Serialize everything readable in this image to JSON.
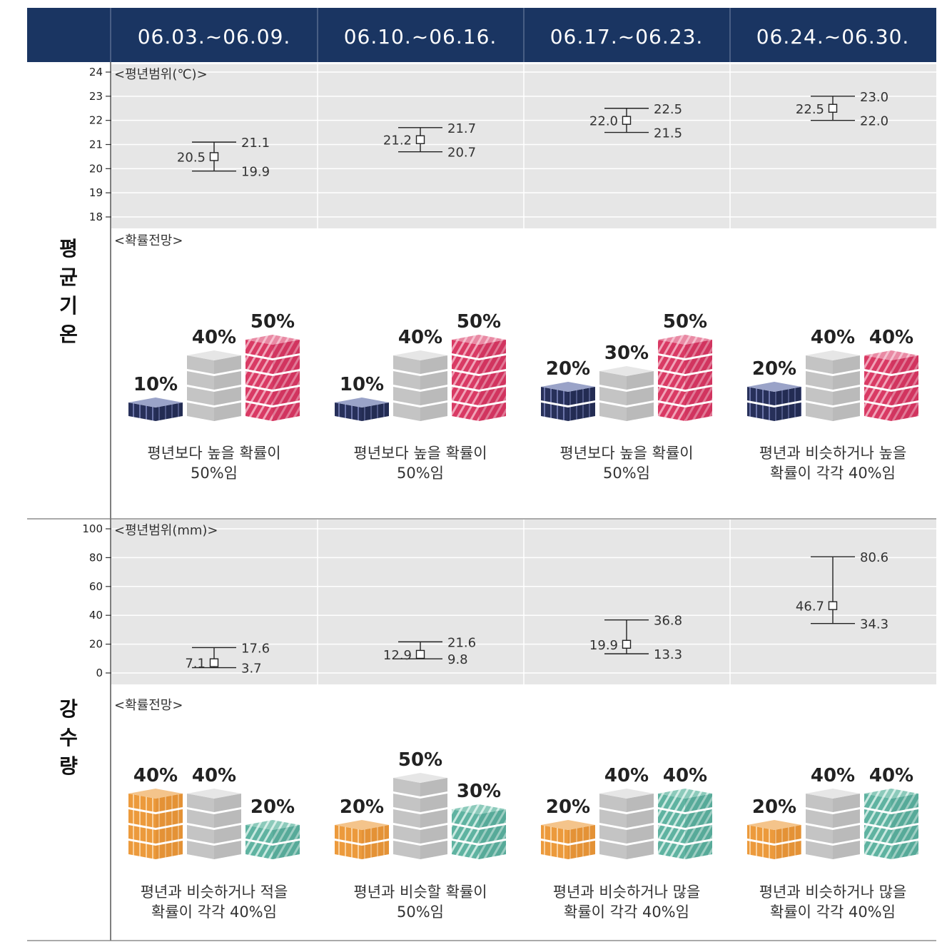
{
  "colors": {
    "header_bg": "#1a3562",
    "panel_bg": "#e6e6e6",
    "below": "#27305a",
    "near": "#c4c4c4",
    "above": "#d93a64",
    "dry": "#ec9a3c",
    "wet": "#5fb3a1"
  },
  "periods": [
    "06.03.~06.09.",
    "06.10.~06.16.",
    "06.17.~06.23.",
    "06.24.~06.30."
  ],
  "temperature": {
    "section_label": "평균기온",
    "range_label": "<평년범위(℃)>",
    "prob_label": "<확률전망>"
  },
  "precipitation": {
    "section_label": "강수량",
    "range_label": "<평년범위(mm)>",
    "prob_label": "<확률전망>"
  },
  "chart_data": [
    {
      "type": "errorbar",
      "panel": "평균기온 평년범위",
      "y_unit": "℃",
      "ylim": [
        18,
        24
      ],
      "y_ticks": [
        18,
        19,
        20,
        21,
        22,
        23,
        24
      ],
      "categories": [
        "06.03.~06.09.",
        "06.10.~06.16.",
        "06.17.~06.23.",
        "06.24.~06.30."
      ],
      "mid": [
        20.5,
        21.2,
        22.0,
        22.5
      ],
      "upper": [
        21.1,
        21.7,
        22.5,
        23.0
      ],
      "lower": [
        19.9,
        20.7,
        21.5,
        22.0
      ],
      "mid_labels": [
        "20.5",
        "21.2",
        "22.0",
        "22.5"
      ],
      "upper_labels": [
        "21.1",
        "21.7",
        "22.5",
        "23.0"
      ],
      "lower_labels": [
        "19.9",
        "20.7",
        "21.5",
        "22.0"
      ]
    },
    {
      "type": "bar",
      "panel": "평균기온 확률전망",
      "categories": [
        "06.03.~06.09.",
        "06.10.~06.16.",
        "06.17.~06.23.",
        "06.24.~06.30."
      ],
      "series": [
        {
          "values": [
            10,
            10,
            20,
            20
          ],
          "color": "#27305a"
        },
        {
          "values": [
            40,
            40,
            30,
            40
          ],
          "color": "#c4c4c4"
        },
        {
          "values": [
            50,
            50,
            50,
            40
          ],
          "color": "#d93a64"
        }
      ],
      "captions": [
        [
          "평년보다 높을 확률이",
          "50%임"
        ],
        [
          "평년보다 높을 확률이",
          "50%임"
        ],
        [
          "평년보다 높을 확률이",
          "50%임"
        ],
        [
          "평년과 비슷하거나 높을",
          "확률이 각각 40%임"
        ]
      ]
    },
    {
      "type": "errorbar",
      "panel": "강수량 평년범위",
      "y_unit": "mm",
      "ylim": [
        0,
        100
      ],
      "y_ticks": [
        0,
        20,
        40,
        60,
        80,
        100
      ],
      "categories": [
        "06.03.~06.09.",
        "06.10.~06.16.",
        "06.17.~06.23.",
        "06.24.~06.30."
      ],
      "mid": [
        7.1,
        12.9,
        19.9,
        46.7
      ],
      "upper": [
        17.6,
        21.6,
        36.8,
        80.6
      ],
      "lower": [
        3.7,
        9.8,
        13.3,
        34.3
      ],
      "mid_labels": [
        "7.1",
        "12.9",
        "19.9",
        "46.7"
      ],
      "upper_labels": [
        "17.6",
        "21.6",
        "36.8",
        "80.6"
      ],
      "lower_labels": [
        "3.7",
        "9.8",
        "13.3",
        "34.3"
      ]
    },
    {
      "type": "bar",
      "panel": "강수량 확률전망",
      "categories": [
        "06.03.~06.09.",
        "06.10.~06.16.",
        "06.17.~06.23.",
        "06.24.~06.30."
      ],
      "series": [
        {
          "values": [
            40,
            20,
            20,
            20
          ],
          "color": "#ec9a3c"
        },
        {
          "values": [
            40,
            50,
            40,
            40
          ],
          "color": "#c4c4c4"
        },
        {
          "values": [
            20,
            30,
            40,
            40
          ],
          "color": "#5fb3a1"
        }
      ],
      "captions": [
        [
          "평년과 비슷하거나 적을",
          "확률이 각각 40%임"
        ],
        [
          "평년과 비슷할 확률이",
          "50%임"
        ],
        [
          "평년과 비슷하거나 많을",
          "확률이 각각 40%임"
        ],
        [
          "평년과 비슷하거나 많을",
          "확률이 각각 40%임"
        ]
      ]
    }
  ]
}
